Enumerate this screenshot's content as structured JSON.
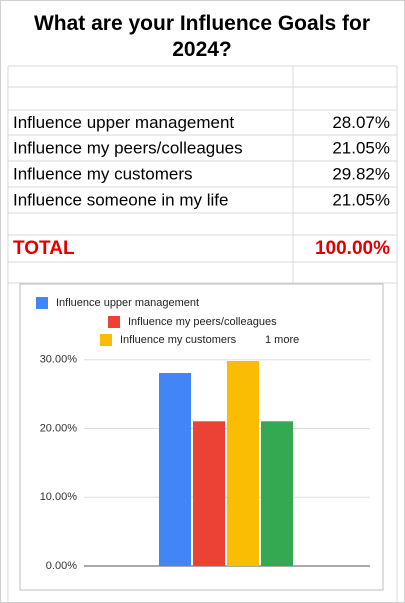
{
  "title": "What are your Influence Goals for 2024?",
  "table": {
    "rows": [
      [
        "Influence upper management",
        "28.07%"
      ],
      [
        "Influence my peers/colleagues",
        "21.05%"
      ],
      [
        "Influence my customers",
        "29.82%"
      ],
      [
        "Influence someone in my life",
        "21.05%"
      ]
    ],
    "total": [
      "TOTAL",
      "100.00%"
    ]
  },
  "chart_data": {
    "type": "bar",
    "series": [
      {
        "name": "Influence upper management",
        "color": "#4285f4",
        "values": [
          28.07
        ]
      },
      {
        "name": "Influence my peers/colleagues",
        "color": "#ea4335",
        "values": [
          21.05
        ]
      },
      {
        "name": "Influence my customers",
        "color": "#fbbc04",
        "values": [
          29.82
        ]
      },
      {
        "color": "#34a853",
        "values": [
          21.05
        ]
      }
    ],
    "legend_more": "1 more",
    "ylim": [
      0,
      32
    ],
    "yticks": [
      {
        "value": 0,
        "label": "0.00%"
      },
      {
        "value": 10,
        "label": "10.00%"
      },
      {
        "value": 20,
        "label": "20.00%"
      },
      {
        "value": 30,
        "label": "30.00%"
      }
    ],
    "grid": true
  }
}
